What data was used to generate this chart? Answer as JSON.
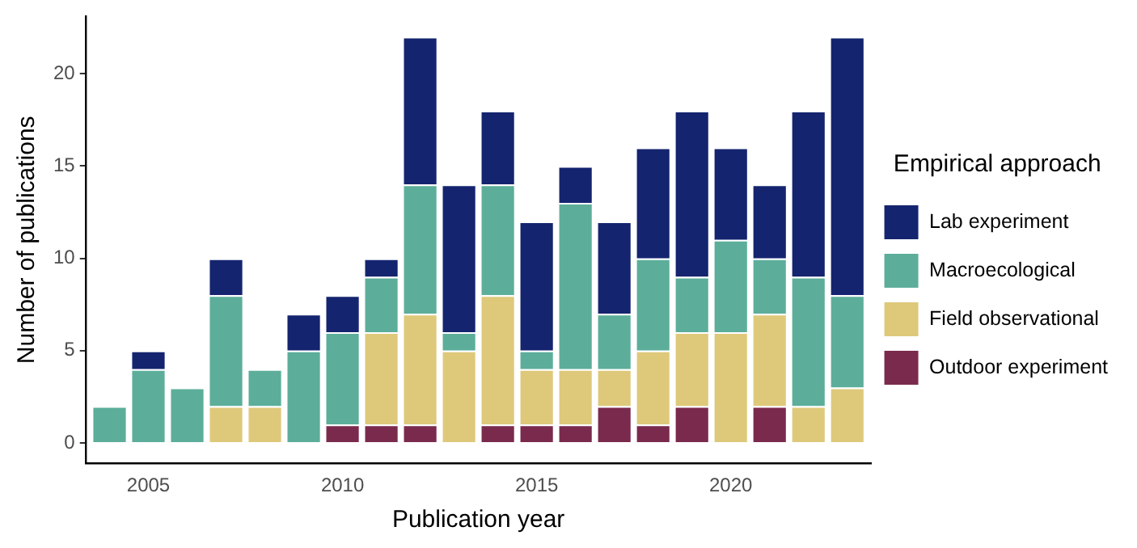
{
  "chart_data": {
    "type": "bar",
    "stacked": true,
    "xlabel": "Publication year",
    "ylabel": "Number of publications",
    "legend_title": "Empirical approach",
    "legend": "right",
    "grid": false,
    "x": [
      2004,
      2005,
      2006,
      2007,
      2008,
      2009,
      2010,
      2011,
      2012,
      2013,
      2014,
      2015,
      2016,
      2017,
      2018,
      2019,
      2020,
      2021,
      2022,
      2023
    ],
    "xlim": [
      2003.4,
      2023.6
    ],
    "xticks": [
      2005,
      2010,
      2015,
      2020
    ],
    "ylim": [
      -1.1,
      23.1
    ],
    "yticks": [
      0,
      5,
      10,
      15,
      20
    ],
    "series": [
      {
        "name": "Outdoor experiment",
        "color": "#7a2a4d",
        "values": [
          0,
          0,
          0,
          0,
          0,
          0,
          1,
          1,
          1,
          0,
          1,
          1,
          1,
          2,
          1,
          2,
          0,
          2,
          0,
          0
        ]
      },
      {
        "name": "Field observational",
        "color": "#dec97b",
        "values": [
          0,
          0,
          0,
          2,
          2,
          0,
          0,
          5,
          6,
          5,
          7,
          3,
          3,
          2,
          4,
          4,
          6,
          5,
          2,
          3
        ]
      },
      {
        "name": "Macroecological",
        "color": "#5cae9a",
        "values": [
          2,
          4,
          3,
          6,
          2,
          5,
          5,
          3,
          7,
          1,
          6,
          1,
          9,
          3,
          5,
          3,
          5,
          3,
          7,
          5
        ]
      },
      {
        "name": "Lab experiment",
        "color": "#14246f",
        "values": [
          0,
          1,
          0,
          2,
          0,
          2,
          2,
          1,
          8,
          8,
          4,
          7,
          2,
          5,
          6,
          9,
          5,
          4,
          9,
          14
        ]
      }
    ]
  }
}
